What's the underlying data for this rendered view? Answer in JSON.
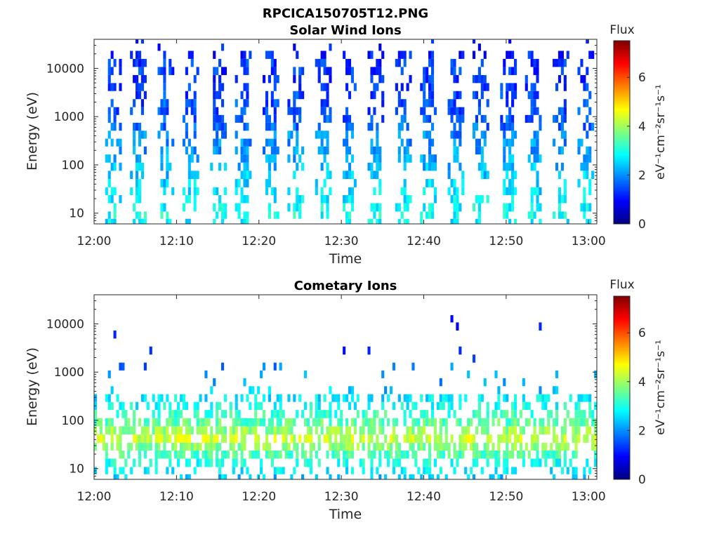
{
  "figure_title": "RPCICA150705T12.PNG",
  "colors": {
    "axis": "#262626",
    "background": "#ffffff"
  },
  "chart_data": [
    {
      "type": "heatmap",
      "title": "Solar Wind Ions",
      "xlabel": "Time",
      "ylabel": "Energy (eV)",
      "x_range": [
        "12:00",
        "13:01"
      ],
      "y_range": [
        6,
        40000
      ],
      "y_scale": "log",
      "xticks": [
        "12:00",
        "12:10",
        "12:20",
        "12:30",
        "12:40",
        "12:50",
        "13:00"
      ],
      "yticks": [
        "10",
        "100",
        "1000",
        "10000"
      ],
      "colorbar": {
        "label": "Flux",
        "unit": "eV⁻¹cm⁻²sr⁻¹s⁻¹",
        "range": [
          0,
          7.5
        ],
        "ticks": [
          "0",
          "2",
          "4",
          "6"
        ],
        "colormap": "jet"
      },
      "structure": "periodic vertical sweeps about every 3.2 minutes; flux about 1.5–2 at 300–15000 eV, about 2.5–3 at 6–100 eV",
      "sweep_times_min": [
        2.2,
        5.4,
        8.6,
        11.8,
        15.0,
        18.2,
        21.4,
        24.6,
        27.8,
        31.0,
        34.2,
        37.4,
        40.6,
        43.8,
        47.0,
        50.2,
        53.4,
        56.6,
        59.8
      ],
      "energy_levels_eV": [
        6.5,
        9,
        13,
        20,
        28,
        42,
        62,
        92,
        135,
        200,
        290,
        420,
        620,
        900,
        1300,
        1900,
        2800,
        4100,
        6000,
        8800,
        13000,
        19000,
        28000,
        38000
      ],
      "flux_by_level": [
        2.7,
        2.9,
        2.8,
        2.7,
        2.6,
        2.5,
        2.4,
        2.3,
        2.2,
        2.1,
        2.0,
        1.9,
        1.7,
        1.6,
        1.5,
        1.5,
        1.4,
        1.4,
        1.3,
        1.3,
        1.3,
        1.2,
        1.2,
        1.1
      ]
    },
    {
      "type": "heatmap",
      "title": "Cometary Ions",
      "xlabel": "Time",
      "ylabel": "Energy (eV)",
      "x_range": [
        "12:00",
        "13:01"
      ],
      "y_range": [
        6,
        40000
      ],
      "y_scale": "log",
      "xticks": [
        "12:00",
        "12:10",
        "12:20",
        "12:30",
        "12:40",
        "12:50",
        "13:00"
      ],
      "yticks": [
        "10",
        "100",
        "1000",
        "10000"
      ],
      "colorbar": {
        "label": "Flux",
        "unit": "eV⁻¹cm⁻²sr⁻¹s⁻¹",
        "range": [
          0,
          7.5
        ],
        "ticks": [
          "0",
          "2",
          "4",
          "6"
        ],
        "colormap": "jet"
      },
      "structure": "dense flux 3–4.5 between 20 and 300 eV, peaking near 40 eV; sparse points up to about 10000 eV",
      "peak_energy_eV": 40,
      "energy_levels_eV": [
        6.5,
        9,
        13,
        20,
        28,
        42,
        62,
        92,
        135,
        200,
        290,
        420,
        620,
        900,
        1300,
        1900,
        2800,
        4100,
        6000,
        8800,
        13000
      ],
      "flux_by_level": [
        2.4,
        2.7,
        3.0,
        3.4,
        3.8,
        4.3,
        3.9,
        3.5,
        3.2,
        2.9,
        2.7,
        2.4,
        2.2,
        2.0,
        1.8,
        1.6,
        1.4,
        1.3,
        1.2,
        1.1,
        1.0
      ]
    }
  ]
}
